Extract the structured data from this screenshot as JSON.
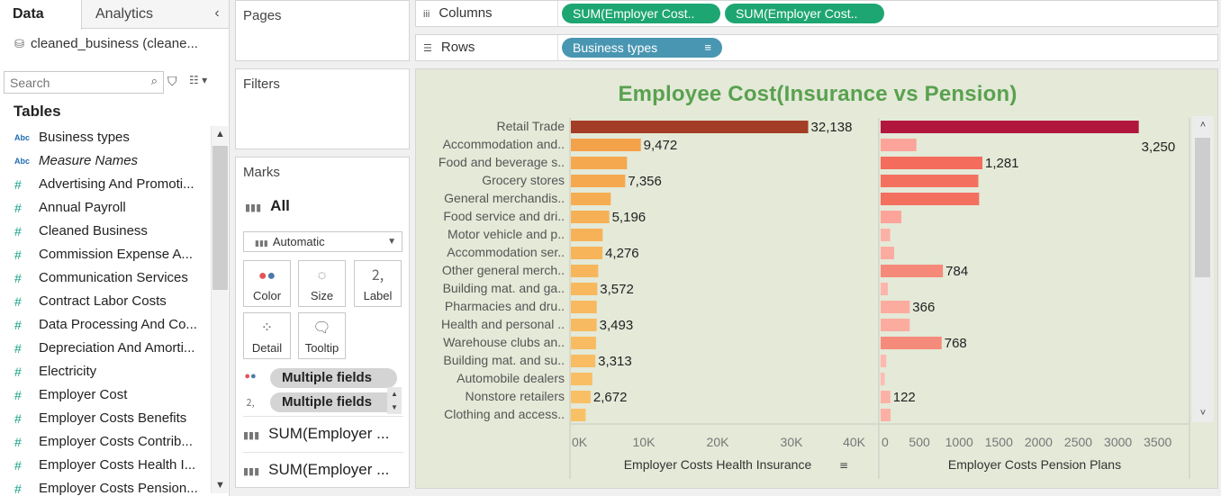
{
  "left_pane": {
    "tabs": [
      {
        "label": "Data"
      },
      {
        "label": "Analytics"
      }
    ],
    "collapse_glyph": "‹",
    "datasource": "cleaned_business (cleane...",
    "search_placeholder": "Search",
    "tables_title": "Tables",
    "fields": [
      {
        "type": "dimension",
        "type_label": "Abc",
        "name": "Business types",
        "italic": false
      },
      {
        "type": "dimension",
        "type_label": "Abc",
        "name": "Measure Names",
        "italic": true
      },
      {
        "type": "measure",
        "type_label": "#",
        "name": "Advertising And Promoti...",
        "italic": false
      },
      {
        "type": "measure",
        "type_label": "#",
        "name": "Annual Payroll",
        "italic": false
      },
      {
        "type": "measure",
        "type_label": "#",
        "name": "Cleaned Business",
        "italic": false
      },
      {
        "type": "measure",
        "type_label": "#",
        "name": "Commission Expense A...",
        "italic": false
      },
      {
        "type": "measure",
        "type_label": "#",
        "name": "Communication Services",
        "italic": false
      },
      {
        "type": "measure",
        "type_label": "#",
        "name": "Contract Labor Costs",
        "italic": false
      },
      {
        "type": "measure",
        "type_label": "#",
        "name": "Data Processing And Co...",
        "italic": false
      },
      {
        "type": "measure",
        "type_label": "#",
        "name": "Depreciation And Amorti...",
        "italic": false
      },
      {
        "type": "measure",
        "type_label": "#",
        "name": "Electricity",
        "italic": false
      },
      {
        "type": "measure",
        "type_label": "#",
        "name": "Employer Cost",
        "italic": false
      },
      {
        "type": "measure",
        "type_label": "#",
        "name": "Employer Costs Benefits",
        "italic": false
      },
      {
        "type": "measure",
        "type_label": "#",
        "name": "Employer Costs Contrib...",
        "italic": false
      },
      {
        "type": "measure",
        "type_label": "#",
        "name": "Employer Costs Health I...",
        "italic": false
      },
      {
        "type": "measure",
        "type_label": "#",
        "name": "Employer Costs Pension...",
        "italic": false
      }
    ]
  },
  "cards": {
    "pages": "Pages",
    "filters": "Filters",
    "marks": {
      "title": "Marks",
      "all_label": "All",
      "mark_type": "Automatic",
      "buttons": [
        {
          "name": "color",
          "label": "Color",
          "icon": "color-dots-icon"
        },
        {
          "name": "size",
          "label": "Size",
          "icon": "size-icon"
        },
        {
          "name": "label",
          "label": "Label",
          "icon": "label-icon"
        },
        {
          "name": "detail",
          "label": "Detail",
          "icon": "detail-icon"
        },
        {
          "name": "tooltip",
          "label": "Tooltip",
          "icon": "tooltip-icon"
        }
      ],
      "encoding_pills": [
        {
          "icon": "color-dots-icon",
          "label": "Multiple fields"
        },
        {
          "icon": "label-icon",
          "label": "Multiple fields"
        }
      ],
      "measure_cards": [
        "SUM(Employer ...",
        "SUM(Employer ..."
      ]
    }
  },
  "shelves": {
    "columns": {
      "label": "Columns",
      "pills": [
        "SUM(Employer Cost..",
        "SUM(Employer Cost.."
      ]
    },
    "rows": {
      "label": "Rows",
      "pills": [
        "Business types"
      ]
    }
  },
  "viz": {
    "title": "Employee Cost(Insurance vs Pension)"
  },
  "chart_data": {
    "type": "bar",
    "orientation": "horizontal",
    "title": "Employee Cost(Insurance vs Pension)",
    "categories": [
      "Retail Trade",
      "Accommodation and..",
      "Food and beverage s..",
      "Grocery stores",
      "General merchandis..",
      "Food service and dri..",
      "Motor vehicle and p..",
      "Accommodation ser..",
      "Other general merch..",
      "Building mat. and ga..",
      "Pharmacies and dru..",
      "Health and personal ..",
      "Warehouse clubs an..",
      "Building mat. and su..",
      "Automobile dealers",
      "Nonstore retailers",
      "Clothing and access.."
    ],
    "series": [
      {
        "name": "Employer Costs Health Insurance",
        "values": [
          32138,
          9472,
          7600,
          7356,
          5400,
          5196,
          4300,
          4276,
          3700,
          3572,
          3500,
          3493,
          3400,
          3313,
          2900,
          2672,
          2000
        ],
        "labels": [
          "32,138",
          "9,472",
          "",
          "7,356",
          "",
          "5,196",
          "",
          "4,276",
          "",
          "3,572",
          "",
          "3,493",
          "",
          "3,313",
          "",
          "2,672",
          ""
        ],
        "xlim": [
          0,
          40000
        ],
        "ticks": [
          "0K",
          "10K",
          "20K",
          "30K",
          "40K"
        ],
        "tick_values": [
          0,
          10000,
          20000,
          30000,
          40000
        ],
        "axis_label": "Employer Costs Health Insurance",
        "colors": [
          "#a33d25",
          "#f4a24a",
          "#f5a84e",
          "#f5a84e",
          "#f6ad52",
          "#f6b055",
          "#f7b257",
          "#f7b459",
          "#f7b65c",
          "#f8b85e",
          "#f8b95f",
          "#f8ba60",
          "#f8bb61",
          "#f8bc62",
          "#f9be64",
          "#f9bf65",
          "#f9c166"
        ]
      },
      {
        "name": "Employer Costs Pension Plans",
        "values": [
          3250,
          450,
          1281,
          1230,
          1240,
          260,
          120,
          170,
          784,
          90,
          366,
          366,
          768,
          70,
          50,
          122,
          125
        ],
        "labels": [
          "3,250",
          "",
          "1,281",
          "",
          "",
          "",
          "",
          "",
          "784",
          "",
          "366",
          "",
          "768",
          "",
          "",
          "122",
          ""
        ],
        "xlim": [
          0,
          3900
        ],
        "ticks": [
          "0",
          "500",
          "1000",
          "1500",
          "2000",
          "2500",
          "3000",
          "3500"
        ],
        "tick_values": [
          0,
          500,
          1000,
          1500,
          2000,
          2500,
          3000,
          3500
        ],
        "axis_label": "Employer Costs Pension Plans",
        "colors": [
          "#b1163d",
          "#fca49a",
          "#f36c5c",
          "#f3705f",
          "#f3705f",
          "#fca49a",
          "#fcb1a6",
          "#fcaba0",
          "#f58a7a",
          "#fcb5ab",
          "#fcab9f",
          "#fcab9f",
          "#f58b7b",
          "#fdb9af",
          "#fdbcb2",
          "#fcb1a6",
          "#fcb0a5"
        ]
      }
    ],
    "grid": false,
    "legend": "none"
  }
}
